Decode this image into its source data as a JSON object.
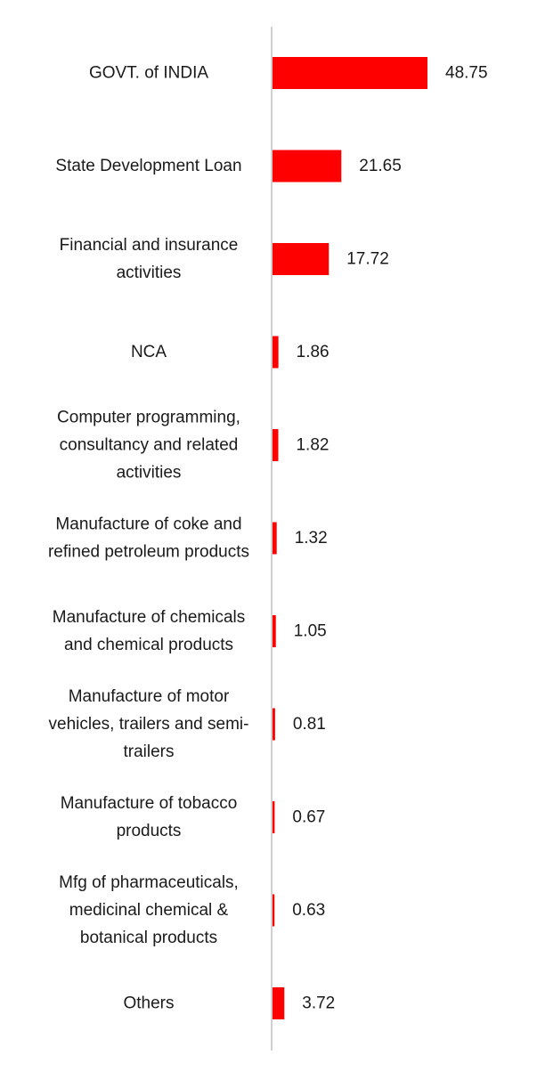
{
  "chart_data": {
    "type": "bar",
    "orientation": "horizontal",
    "title": "",
    "xlabel": "",
    "ylabel": "",
    "categories": [
      "GOVT. of INDIA",
      "State Development Loan",
      "Financial and insurance activities",
      "NCA",
      "Computer programming, consultancy and related activities",
      "Manufacture of coke and refined petroleum products",
      "Manufacture of chemicals and chemical products",
      "Manufacture of motor vehicles, trailers and semi-trailers",
      "Manufacture of tobacco products",
      "Mfg of pharmaceuticals, medicinal chemical & botanical products",
      "Others"
    ],
    "category_lines": [
      [
        "GOVT. of INDIA"
      ],
      [
        "State Development Loan"
      ],
      [
        "Financial and insurance",
        "activities"
      ],
      [
        "NCA"
      ],
      [
        "Computer programming,",
        "consultancy and related",
        "activities"
      ],
      [
        "Manufacture of coke and",
        "refined petroleum products"
      ],
      [
        "Manufacture of chemicals",
        "and chemical products"
      ],
      [
        "Manufacture of motor",
        "vehicles, trailers and semi-",
        "trailers"
      ],
      [
        "Manufacture of tobacco",
        "products"
      ],
      [
        "Mfg of pharmaceuticals,",
        "medicinal chemical &",
        "botanical products"
      ],
      [
        "Others"
      ]
    ],
    "values": [
      48.75,
      21.65,
      17.72,
      1.86,
      1.82,
      1.32,
      1.05,
      0.81,
      0.67,
      0.63,
      3.72
    ],
    "value_labels": [
      "48.75",
      "21.65",
      "17.72",
      "1.86",
      "1.82",
      "1.32",
      "1.05",
      "0.81",
      "0.67",
      "0.63",
      "3.72"
    ],
    "bar_color": "#ff0000",
    "axis_color": "#d0d0d0",
    "grid": false,
    "legend": "none"
  }
}
